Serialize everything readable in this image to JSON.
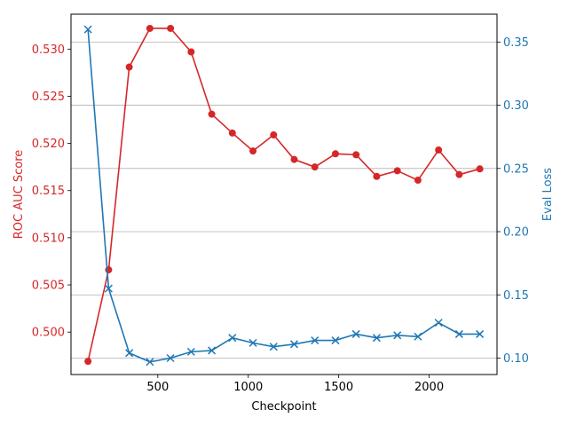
{
  "chart_data": {
    "type": "line",
    "title": "",
    "xlabel": "Checkpoint",
    "ylabel_left": "ROC AUC Score",
    "ylabel_right": "Eval Loss",
    "x": [
      114,
      228,
      342,
      456,
      570,
      684,
      798,
      912,
      1026,
      1140,
      1254,
      1368,
      1482,
      1596,
      1710,
      1824,
      1938,
      2052,
      2166,
      2280
    ],
    "xlim": [
      20,
      2375
    ],
    "x_ticks": [
      500,
      1000,
      1500,
      2000
    ],
    "ylim_left": [
      0.4955,
      0.5337
    ],
    "y_ticks_left": [
      0.5,
      0.505,
      0.51,
      0.515,
      0.52,
      0.525,
      0.53
    ],
    "y_tick_labels_left": [
      "0.500",
      "0.505",
      "0.510",
      "0.515",
      "0.520",
      "0.525",
      "0.530"
    ],
    "ylim_right": [
      0.087,
      0.372
    ],
    "y_ticks_right": [
      0.1,
      0.15,
      0.2,
      0.25,
      0.3,
      0.35
    ],
    "y_tick_labels_right": [
      "0.10",
      "0.15",
      "0.20",
      "0.25",
      "0.30",
      "0.35"
    ],
    "grid": "horizontal, right axis",
    "series": [
      {
        "axis": "left",
        "marker": "circle",
        "color": "#d62728",
        "values": [
          0.4969,
          0.5066,
          0.5281,
          0.5322,
          0.5322,
          0.5297,
          0.5231,
          0.5211,
          0.5192,
          0.5209,
          0.5183,
          0.5175,
          0.5189,
          0.5188,
          0.5165,
          0.5171,
          0.5161,
          0.5193,
          0.5167,
          0.5173
        ]
      },
      {
        "axis": "right",
        "marker": "x",
        "color": "#1f77b4",
        "values": [
          0.36,
          0.155,
          0.104,
          0.097,
          0.1,
          0.105,
          0.106,
          0.116,
          0.112,
          0.109,
          0.111,
          0.114,
          0.114,
          0.119,
          0.116,
          0.118,
          0.117,
          0.128,
          0.119,
          0.119
        ]
      }
    ]
  }
}
